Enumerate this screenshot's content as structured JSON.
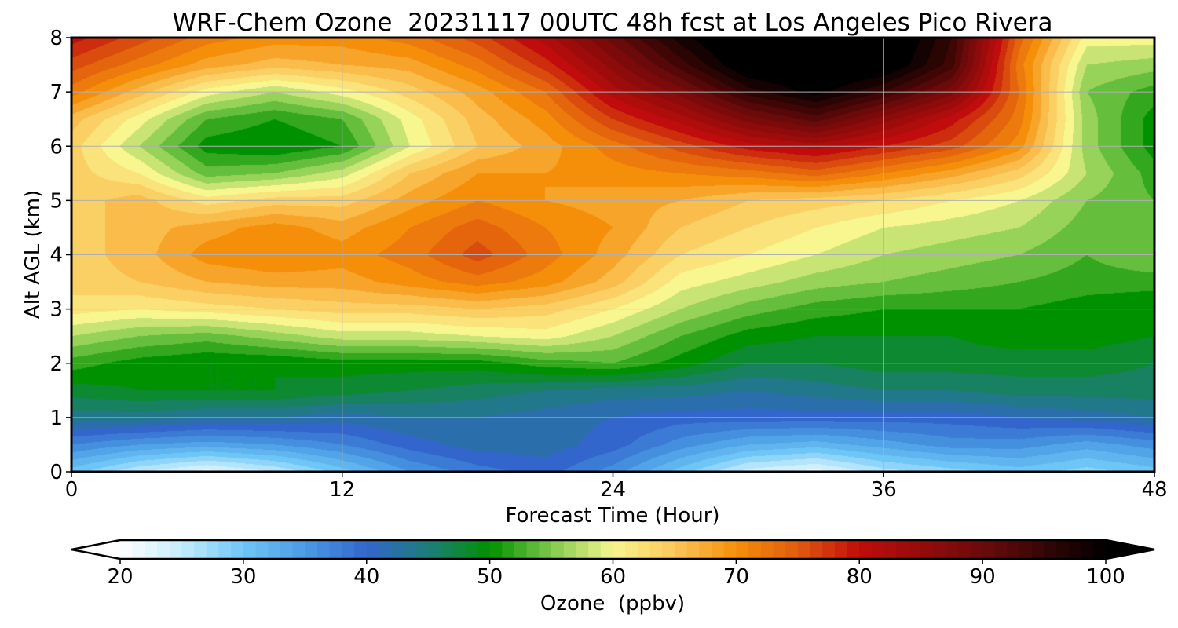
{
  "chart_data": {
    "type": "heatmap",
    "title": "WRF-Chem Ozone  20231117 00UTC 48h fcst at Los Angeles Pico Rivera",
    "xlabel": "Forecast Time (Hour)",
    "ylabel": "Alt AGL (km)",
    "xlim": [
      0,
      48
    ],
    "ylim": [
      0,
      8
    ],
    "xticks": [
      0,
      12,
      24,
      36,
      48
    ],
    "yticks": [
      0,
      1,
      2,
      3,
      4,
      5,
      6,
      7,
      8
    ],
    "grid": true,
    "x": [
      0,
      3,
      6,
      9,
      12,
      15,
      18,
      21,
      24,
      27,
      30,
      33,
      36,
      39,
      42,
      45,
      48
    ],
    "y": [
      0,
      0.5,
      1,
      1.5,
      2,
      2.5,
      3,
      3.5,
      4,
      4.5,
      5,
      5.5,
      6,
      6.5,
      7,
      7.5,
      8
    ],
    "z": [
      [
        30,
        25,
        22,
        25,
        30,
        35,
        38,
        40,
        36,
        30,
        24,
        22,
        26,
        28,
        30,
        28,
        30
      ],
      [
        37,
        35,
        34,
        35,
        37,
        40,
        42,
        42,
        40,
        36,
        33,
        32,
        34,
        36,
        36,
        34,
        36
      ],
      [
        44,
        44,
        43,
        43,
        42,
        43,
        43,
        42,
        41,
        40,
        40,
        40,
        40,
        40,
        41,
        42,
        43
      ],
      [
        48,
        49,
        49,
        49,
        48,
        47,
        46,
        45,
        44,
        44,
        43,
        44,
        45,
        45,
        46,
        46,
        46
      ],
      [
        52,
        50,
        49,
        49,
        50,
        50,
        50,
        52,
        53,
        50,
        47,
        47,
        48,
        48,
        48,
        48,
        47
      ],
      [
        57,
        55,
        54,
        56,
        58,
        58,
        59,
        60,
        57,
        53,
        50,
        49,
        49,
        49,
        50,
        50,
        49
      ],
      [
        62,
        61,
        62,
        63,
        64,
        64,
        65,
        64,
        61,
        57,
        54,
        52,
        51,
        51,
        51,
        50,
        49
      ],
      [
        64,
        65,
        67,
        68,
        68,
        70,
        72,
        70,
        66,
        60,
        58,
        56,
        55,
        54,
        53,
        52,
        52
      ],
      [
        64,
        66,
        70,
        71,
        70,
        72,
        76,
        72,
        68,
        63,
        61,
        59,
        57,
        56,
        55,
        53,
        55
      ],
      [
        64,
        66,
        68,
        70,
        68,
        71,
        74,
        71,
        69,
        65,
        63,
        61,
        59,
        58,
        57,
        54,
        54
      ],
      [
        64,
        66,
        62,
        64,
        64,
        68,
        71,
        69,
        68,
        67,
        65,
        64,
        63,
        61,
        59,
        55,
        53
      ],
      [
        64,
        61,
        54,
        55,
        58,
        65,
        69,
        69,
        70,
        71,
        72,
        74,
        71,
        68,
        64,
        57,
        52
      ],
      [
        64,
        57,
        50,
        49,
        51,
        59,
        65,
        68,
        72,
        76,
        80,
        82,
        79,
        76,
        70,
        56,
        50
      ],
      [
        66,
        60,
        53,
        51,
        53,
        60,
        66,
        70,
        77,
        82,
        88,
        92,
        86,
        80,
        72,
        56,
        50
      ],
      [
        72,
        66,
        60,
        57,
        60,
        64,
        68,
        73,
        82,
        88,
        96,
        100,
        95,
        88,
        73,
        55,
        52
      ],
      [
        76,
        72,
        68,
        66,
        67,
        68,
        72,
        78,
        86,
        94,
        102,
        103,
        102,
        94,
        72,
        57,
        56
      ],
      [
        80,
        76,
        72,
        70,
        70,
        72,
        76,
        82,
        90,
        98,
        104,
        104,
        104,
        95,
        74,
        60,
        60
      ]
    ],
    "colorbar": {
      "label": "Ozone  (ppbv)",
      "ticks": [
        20,
        30,
        40,
        50,
        60,
        70,
        80,
        90,
        100
      ],
      "min": 20,
      "max": 100,
      "extend": "both",
      "stops": [
        {
          "v": 20,
          "c": "#ffffff"
        },
        {
          "v": 25,
          "c": "#c4ecfd"
        },
        {
          "v": 30,
          "c": "#6ec6f6"
        },
        {
          "v": 35,
          "c": "#4a9be3"
        },
        {
          "v": 40,
          "c": "#3366cc"
        },
        {
          "v": 45,
          "c": "#1d7d7a"
        },
        {
          "v": 50,
          "c": "#009100"
        },
        {
          "v": 55,
          "c": "#7fc94c"
        },
        {
          "v": 60,
          "c": "#f8f68f"
        },
        {
          "v": 65,
          "c": "#fbc75a"
        },
        {
          "v": 70,
          "c": "#f58f0a"
        },
        {
          "v": 75,
          "c": "#e15b0e"
        },
        {
          "v": 80,
          "c": "#c00c0c"
        },
        {
          "v": 90,
          "c": "#6b0a0a"
        },
        {
          "v": 100,
          "c": "#000000"
        }
      ]
    }
  }
}
